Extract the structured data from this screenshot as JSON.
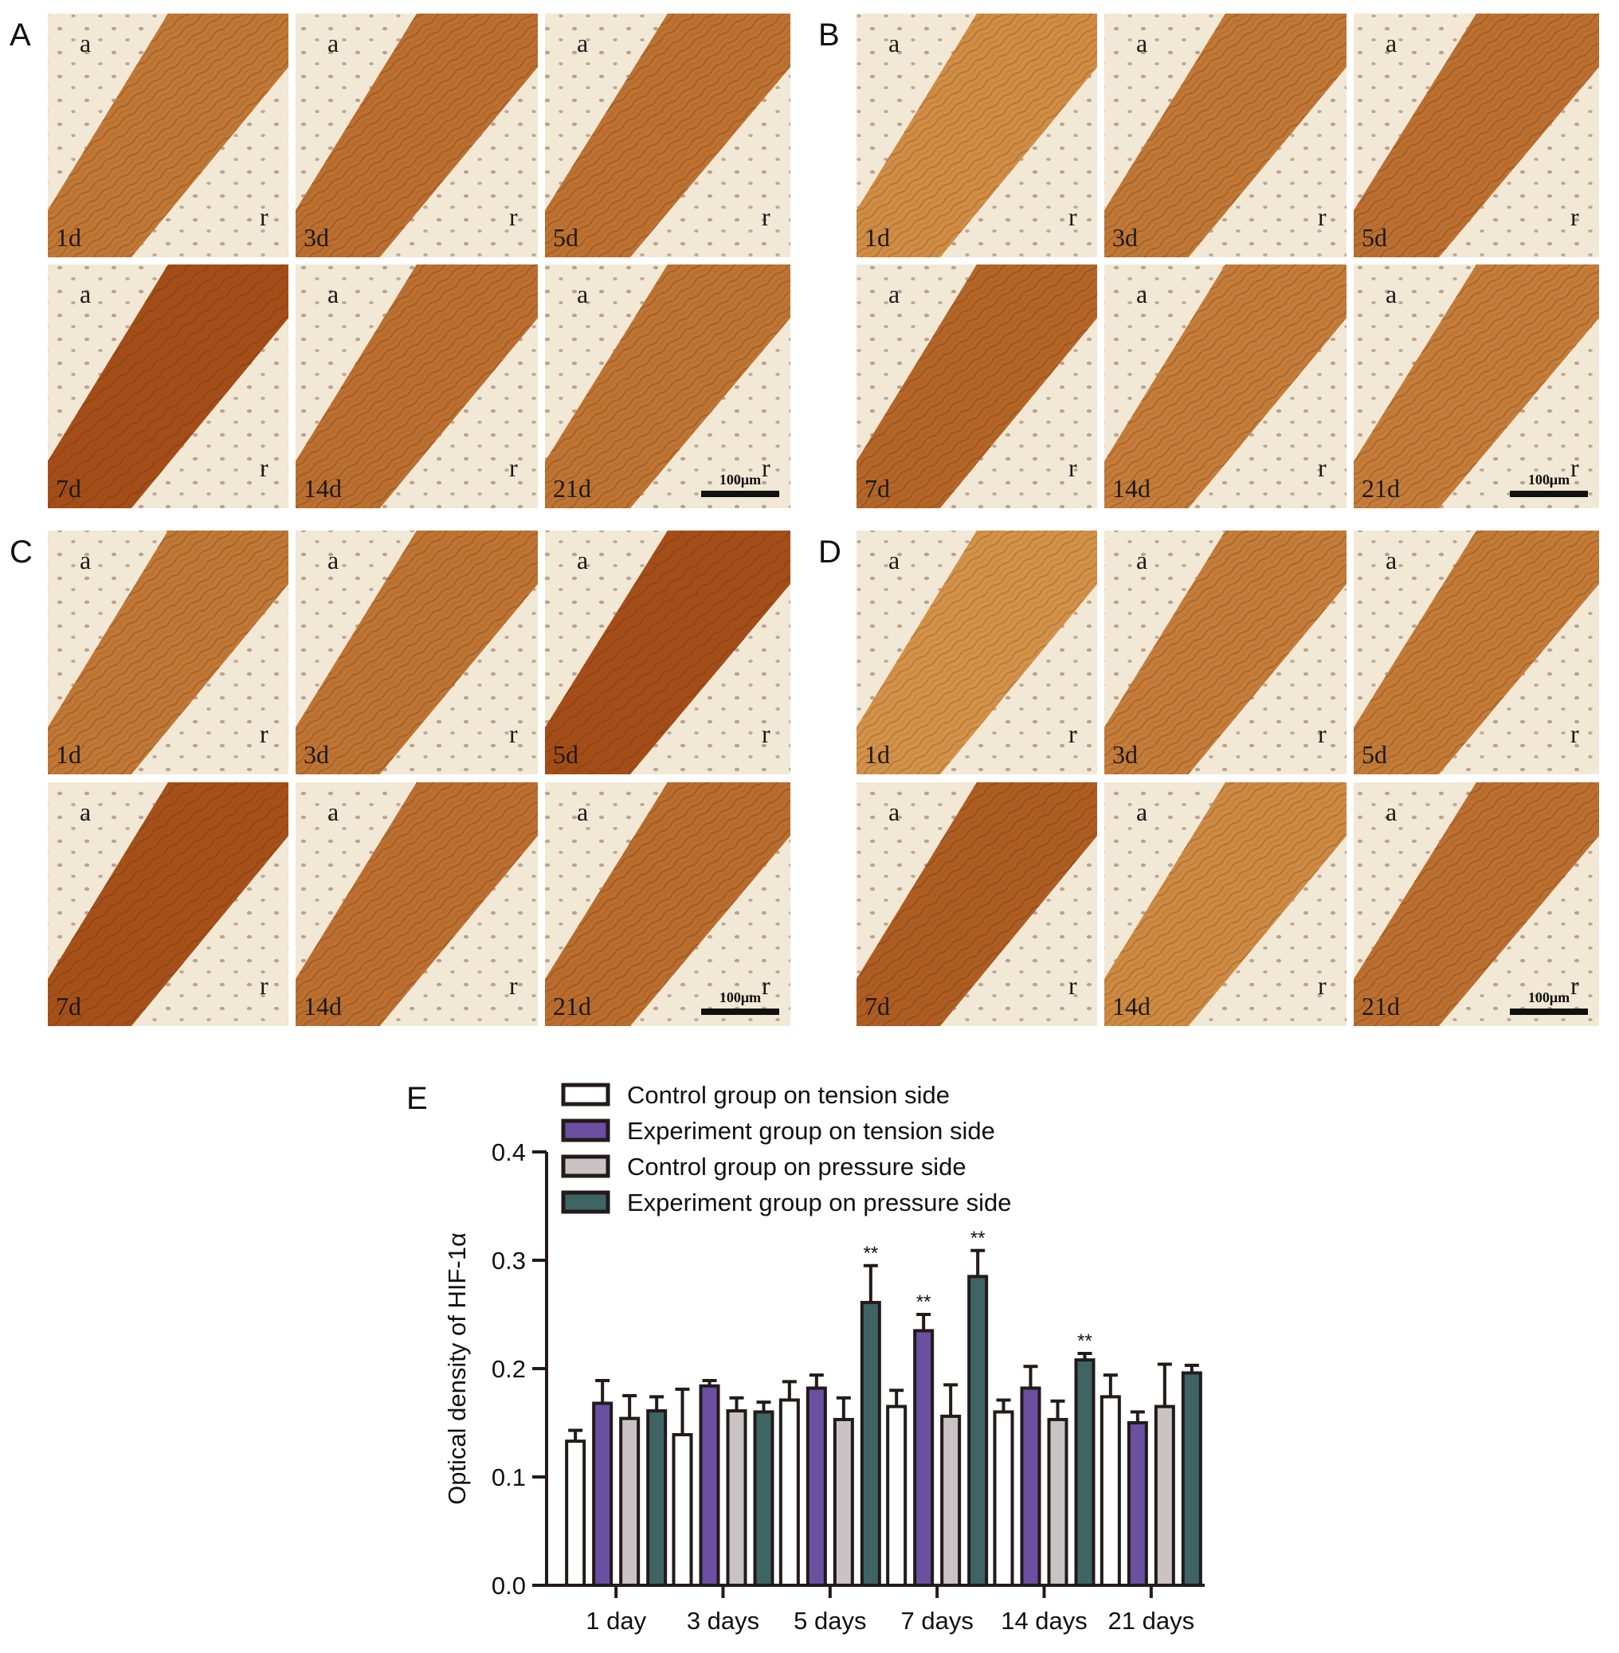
{
  "panels": [
    {
      "letter": "A",
      "tiles": [
        {
          "day": "1d",
          "a": "a",
          "r": "r"
        },
        {
          "day": "3d",
          "a": "a",
          "r": "r"
        },
        {
          "day": "5d",
          "a": "a",
          "r": "r"
        },
        {
          "day": "7d",
          "a": "a",
          "r": "r"
        },
        {
          "day": "14d",
          "a": "a",
          "r": "r"
        },
        {
          "day": "21d",
          "a": "a",
          "r": "r"
        }
      ],
      "scale_bar": "100μm",
      "stain": [
        0.55,
        0.62,
        0.6,
        0.95,
        0.62,
        0.58
      ]
    },
    {
      "letter": "B",
      "tiles": [
        {
          "day": "1d",
          "a": "a",
          "r": "r"
        },
        {
          "day": "3d",
          "a": "a",
          "r": "r"
        },
        {
          "day": "5d",
          "a": "a",
          "r": "r"
        },
        {
          "day": "7d",
          "a": "a",
          "r": "r"
        },
        {
          "day": "14d",
          "a": "a",
          "r": "r"
        },
        {
          "day": "21d",
          "a": "a",
          "r": "r"
        }
      ],
      "scale_bar": "100μm",
      "stain": [
        0.35,
        0.55,
        0.62,
        0.72,
        0.5,
        0.5
      ]
    },
    {
      "letter": "C",
      "tiles": [
        {
          "day": "1d",
          "a": "a",
          "r": "r"
        },
        {
          "day": "3d",
          "a": "a",
          "r": "r"
        },
        {
          "day": "5d",
          "a": "a",
          "r": "r"
        },
        {
          "day": "7d",
          "a": "a",
          "r": "r"
        },
        {
          "day": "14d",
          "a": "a",
          "r": "r"
        },
        {
          "day": "21d",
          "a": "a",
          "r": "r"
        }
      ],
      "scale_bar": "100μm",
      "stain": [
        0.55,
        0.58,
        0.95,
        0.92,
        0.62,
        0.65
      ]
    },
    {
      "letter": "D",
      "tiles": [
        {
          "day": "1d",
          "a": "a",
          "r": "r"
        },
        {
          "day": "3d",
          "a": "a",
          "r": "r"
        },
        {
          "day": "5d",
          "a": "a",
          "r": "r"
        },
        {
          "day": "7d",
          "a": "a",
          "r": "r"
        },
        {
          "day": "14d",
          "a": "a",
          "r": "r"
        },
        {
          "day": "21d",
          "a": "a",
          "r": "r"
        }
      ],
      "scale_bar": "100μm",
      "stain": [
        0.3,
        0.5,
        0.52,
        0.8,
        0.38,
        0.62
      ]
    }
  ],
  "chart_data": {
    "panel_letter": "E",
    "type": "bar",
    "ylabel": "Optical density of HIF-1α",
    "ylim": [
      0,
      0.4
    ],
    "yticks": [
      "0.0",
      "0.1",
      "0.2",
      "0.3",
      "0.4"
    ],
    "categories": [
      "1 day",
      "3 days",
      "5 days",
      "7 days",
      "14 days",
      "21 days"
    ],
    "legend_position": "top-left",
    "grid": false,
    "series": [
      {
        "name": "Control group on tension side",
        "color": "#ffffff",
        "values": [
          0.133,
          0.139,
          0.171,
          0.165,
          0.16,
          0.174
        ],
        "errors": [
          0.01,
          0.042,
          0.017,
          0.015,
          0.011,
          0.02
        ],
        "sig": [
          "",
          "",
          "",
          "",
          "",
          ""
        ]
      },
      {
        "name": "Experiment group on tension side",
        "color": "#6b4fa1",
        "values": [
          0.168,
          0.184,
          0.182,
          0.235,
          0.182,
          0.15
        ],
        "errors": [
          0.021,
          0.005,
          0.012,
          0.015,
          0.02,
          0.01
        ],
        "sig": [
          "",
          "",
          "",
          "**",
          "",
          ""
        ]
      },
      {
        "name": "Control group on pressure side",
        "color": "#c9c3c5",
        "values": [
          0.154,
          0.161,
          0.153,
          0.156,
          0.153,
          0.165
        ],
        "errors": [
          0.021,
          0.012,
          0.02,
          0.029,
          0.017,
          0.039
        ],
        "sig": [
          "",
          "",
          "",
          "",
          "",
          ""
        ]
      },
      {
        "name": "Experiment group on pressure side",
        "color": "#3e6464",
        "values": [
          0.161,
          0.16,
          0.261,
          0.285,
          0.208,
          0.196
        ],
        "errors": [
          0.013,
          0.009,
          0.034,
          0.024,
          0.006,
          0.007
        ],
        "sig": [
          "",
          "",
          "**",
          "**",
          "**",
          ""
        ]
      }
    ]
  }
}
